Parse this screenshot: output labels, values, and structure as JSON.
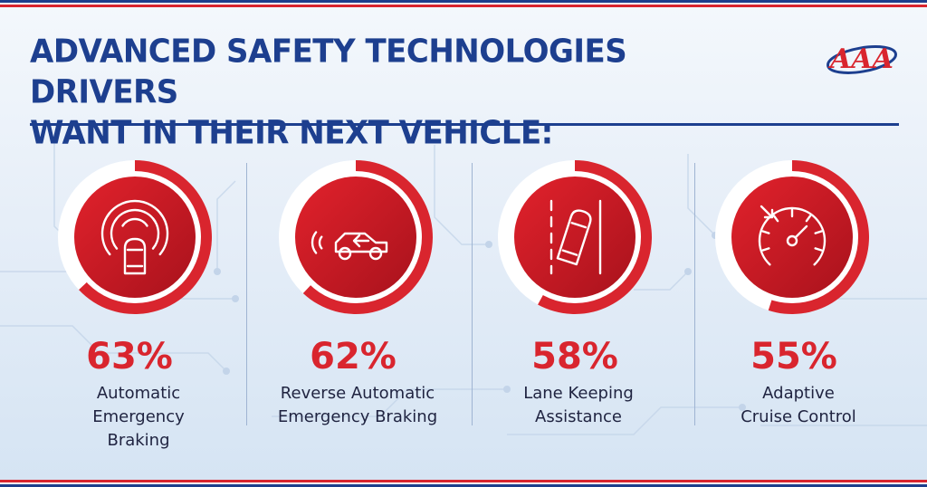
{
  "title": "ADVANCED SAFETY TECHNOLOGIES DRIVERS\nWANT IN THEIR NEXT VEHICLE:",
  "logo_text": "AAA",
  "colors": {
    "primary_red": "#d9252e",
    "dark_red": "#a8121c",
    "navy": "#1d3f8f",
    "track": "#ffffff"
  },
  "chart_data": {
    "type": "pie",
    "subtype": "radial-progress",
    "unit": "%",
    "items": [
      {
        "value": 63,
        "value_label": "63%",
        "label": "Automatic\nEmergency\nBraking",
        "icon": "automatic-emergency-braking-icon"
      },
      {
        "value": 62,
        "value_label": "62%",
        "label": "Reverse Automatic\nEmergency Braking",
        "icon": "reverse-braking-car-icon"
      },
      {
        "value": 58,
        "value_label": "58%",
        "label": "Lane Keeping\nAssistance",
        "icon": "lane-keeping-icon"
      },
      {
        "value": 55,
        "value_label": "55%",
        "label": "Adaptive\nCruise Control",
        "icon": "speedometer-icon"
      }
    ]
  }
}
